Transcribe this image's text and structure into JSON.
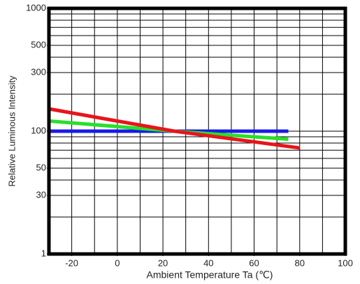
{
  "chart_data": {
    "type": "line",
    "xlabel": "Ambient Temperature Ta (℃)",
    "ylabel": "Relative Luminous Intensity",
    "xlim": [
      -30,
      100
    ],
    "xticks": [
      -20,
      0,
      20,
      40,
      60,
      80,
      100
    ],
    "xgrid": [
      -20,
      -10,
      0,
      10,
      20,
      30,
      40,
      50,
      60,
      70,
      80,
      90
    ],
    "ylim": [
      10,
      1000
    ],
    "log_y": true,
    "yticks": [
      {
        "value": 10,
        "label": "1"
      },
      30,
      50,
      100,
      300,
      500,
      1000
    ],
    "ygrid": [
      20,
      30,
      40,
      50,
      60,
      70,
      80,
      90,
      100,
      200,
      300,
      400,
      500,
      600,
      700,
      800,
      900
    ],
    "grid": true,
    "series": [
      {
        "color": "#1a1ae8",
        "x": [
          -30,
          25,
          75
        ],
        "values": [
          100,
          100,
          100
        ]
      },
      {
        "color": "#28e028",
        "x": [
          -30,
          25,
          75
        ],
        "values": [
          121,
          100,
          86
        ]
      },
      {
        "color": "#e8141c",
        "x": [
          -30,
          25,
          80
        ],
        "values": [
          152,
          100,
          73
        ]
      }
    ]
  }
}
